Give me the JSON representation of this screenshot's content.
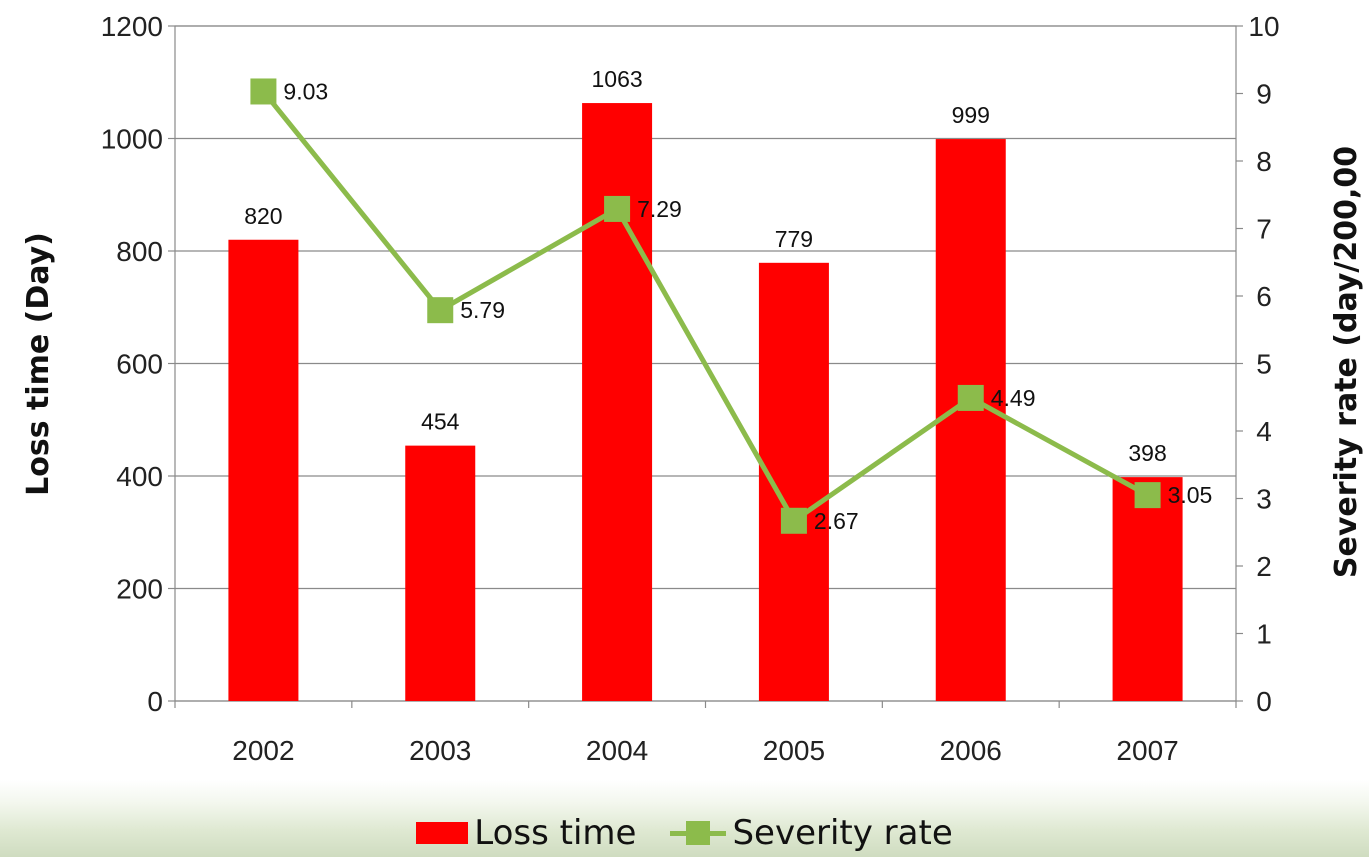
{
  "chart_data": {
    "type": "bar",
    "categories": [
      "2002",
      "2003",
      "2004",
      "2005",
      "2006",
      "2007"
    ],
    "series": [
      {
        "name": "Loss time",
        "type": "bar",
        "axis": "left",
        "color": "#ff0000",
        "values": [
          820,
          454,
          1063,
          779,
          999,
          398
        ],
        "labels": [
          "820",
          "454",
          "1063",
          "779",
          "999",
          "398"
        ]
      },
      {
        "name": "Severity rate",
        "type": "line",
        "axis": "right",
        "color": "#8cbb4b",
        "values": [
          9.03,
          5.79,
          7.29,
          2.67,
          4.49,
          3.05
        ],
        "labels": [
          "9.03",
          "5.79",
          "7.29",
          "2.67",
          "4.49",
          "3.05"
        ]
      }
    ],
    "ylabel": "Loss time (Day)",
    "y2label": "Severity rate (day/200,00",
    "ylim": [
      0,
      1200
    ],
    "y2lim": [
      0,
      10
    ],
    "yticks": [
      "0",
      "200",
      "400",
      "600",
      "800",
      "1000",
      "1200"
    ],
    "y2ticks": [
      "0",
      "1",
      "2",
      "3",
      "4",
      "5",
      "6",
      "7",
      "8",
      "9",
      "10"
    ],
    "grid": true,
    "legend_position": "bottom"
  }
}
